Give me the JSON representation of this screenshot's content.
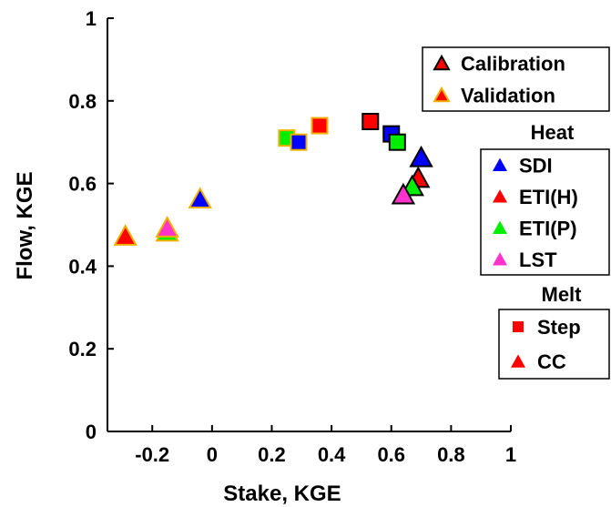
{
  "chart_data": {
    "type": "scatter",
    "xlabel": "Stake, KGE",
    "ylabel": "Flow, KGE",
    "xlim": [
      -0.35,
      1
    ],
    "ylim": [
      0,
      1
    ],
    "xticks": [
      -0.2,
      0,
      0.2,
      0.4,
      0.6,
      0.8,
      1
    ],
    "yticks": [
      0,
      0.2,
      0.4,
      0.6,
      0.8,
      1
    ],
    "xtick_labels": [
      "-0.2",
      "0",
      "0.2",
      "0.4",
      "0.6",
      "0.8",
      "1"
    ],
    "ytick_labels": [
      "0",
      "0.2",
      "0.4",
      "0.6",
      "0.8",
      "1"
    ],
    "grid": false,
    "legend_placement": "right",
    "legends": [
      {
        "title": "",
        "items": [
          {
            "label": "Calibration",
            "marker": "triangle",
            "fill": "#ff0000",
            "edge": "#000000"
          },
          {
            "label": "Validation",
            "marker": "triangle",
            "fill": "#ff0000",
            "edge": "#f0b000"
          }
        ]
      },
      {
        "title": "Heat",
        "items": [
          {
            "label": "SDI",
            "marker": "triangle",
            "fill": "#0000ff",
            "edge": "none"
          },
          {
            "label": "ETI(H)",
            "marker": "triangle",
            "fill": "#ff0000",
            "edge": "none"
          },
          {
            "label": "ETI(P)",
            "marker": "triangle",
            "fill": "#00ee00",
            "edge": "none"
          },
          {
            "label": "LST",
            "marker": "triangle",
            "fill": "#ff33cc",
            "edge": "none"
          }
        ]
      },
      {
        "title": "Melt",
        "items": [
          {
            "label": "Step",
            "marker": "square",
            "fill": "#ff0000",
            "edge": "none"
          },
          {
            "label": "CC",
            "marker": "triangle",
            "fill": "#ff0000",
            "edge": "none"
          }
        ]
      }
    ],
    "points": [
      {
        "x": 0.25,
        "y": 0.71,
        "heat": "ETI(P)",
        "melt": "Step",
        "set": "Validation",
        "fill": "#00ee00"
      },
      {
        "x": 0.29,
        "y": 0.7,
        "heat": "SDI",
        "melt": "Step",
        "set": "Validation",
        "fill": "#0000ff"
      },
      {
        "x": 0.36,
        "y": 0.74,
        "heat": "ETI(H)",
        "melt": "Step",
        "set": "Validation",
        "fill": "#ff0000"
      },
      {
        "x": -0.04,
        "y": 0.56,
        "heat": "SDI",
        "melt": "CC",
        "set": "Validation",
        "fill": "#0000ff"
      },
      {
        "x": -0.15,
        "y": 0.48,
        "heat": "ETI(P)",
        "melt": "CC",
        "set": "Validation",
        "fill": "#00ee00"
      },
      {
        "x": -0.15,
        "y": 0.49,
        "heat": "LST",
        "melt": "CC",
        "set": "Validation",
        "fill": "#ff33cc"
      },
      {
        "x": -0.29,
        "y": 0.47,
        "heat": "ETI(H)",
        "melt": "CC",
        "set": "Validation",
        "fill": "#ff0000"
      },
      {
        "x": 0.53,
        "y": 0.75,
        "heat": "ETI(H)",
        "melt": "Step",
        "set": "Calibration",
        "fill": "#ff0000"
      },
      {
        "x": 0.6,
        "y": 0.72,
        "heat": "SDI",
        "melt": "Step",
        "set": "Calibration",
        "fill": "#0000ff"
      },
      {
        "x": 0.62,
        "y": 0.7,
        "heat": "ETI(P)",
        "melt": "Step",
        "set": "Calibration",
        "fill": "#00ee00"
      },
      {
        "x": 0.7,
        "y": 0.66,
        "heat": "SDI",
        "melt": "CC",
        "set": "Calibration",
        "fill": "#0000ff"
      },
      {
        "x": 0.69,
        "y": 0.61,
        "heat": "ETI(H)",
        "melt": "CC",
        "set": "Calibration",
        "fill": "#ff0000"
      },
      {
        "x": 0.67,
        "y": 0.59,
        "heat": "ETI(P)",
        "melt": "CC",
        "set": "Calibration",
        "fill": "#00ee00"
      },
      {
        "x": 0.64,
        "y": 0.57,
        "heat": "LST",
        "melt": "CC",
        "set": "Calibration",
        "fill": "#ff33cc"
      }
    ],
    "edge_colors": {
      "Calibration": "#000000",
      "Validation": "#f0b000"
    }
  }
}
